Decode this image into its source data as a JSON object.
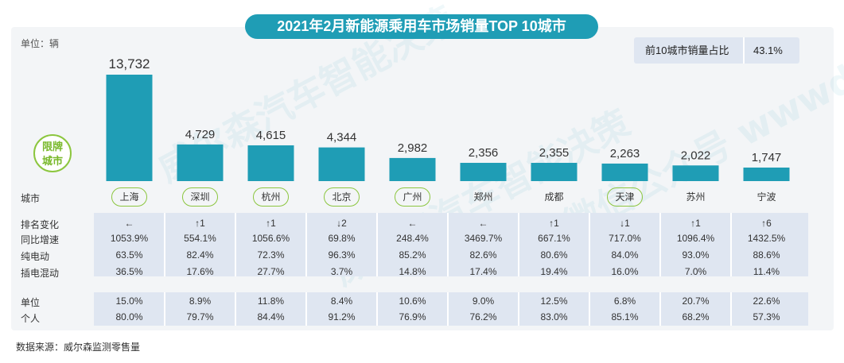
{
  "title": "2021年2月新能源乘用车市场销量TOP 10城市",
  "unit_note": "单位：辆",
  "share": {
    "label": "前10城市销量占比",
    "value": "43.1%"
  },
  "badge": [
    "限牌",
    "城市"
  ],
  "row_labels": {
    "city": "城市",
    "rank_change": "排名变化",
    "yoy": "同比增速",
    "bev": "纯电动",
    "phev": "插电混动",
    "org": "单位",
    "personal": "个人"
  },
  "source": "数据来源：威尔森监测零售量",
  "colors": {
    "bar": "#1f9db5",
    "ring": "#8cc63f",
    "band": "#dfe6f1"
  },
  "chart_data": {
    "type": "bar",
    "title": "2021年2月新能源乘用车市场销量TOP 10城市",
    "ylabel": "单位：辆",
    "categories": [
      "上海",
      "深圳",
      "杭州",
      "北京",
      "广州",
      "郑州",
      "成都",
      "天津",
      "苏州",
      "宁波"
    ],
    "values": [
      13732,
      4729,
      4615,
      4344,
      2982,
      2356,
      2355,
      2263,
      2022,
      1747
    ],
    "value_labels": [
      "13,732",
      "4,729",
      "4,615",
      "4,344",
      "2,982",
      "2,356",
      "2,355",
      "2,263",
      "2,022",
      "1,747"
    ],
    "restricted_city": [
      true,
      true,
      true,
      true,
      true,
      false,
      false,
      true,
      false,
      false
    ],
    "ylim": [
      0,
      13732
    ],
    "grid": false,
    "legend": "none"
  },
  "table": {
    "rank_change": [
      "←",
      "↑1",
      "↑1",
      "↓2",
      "←",
      "←",
      "↑1",
      "↓1",
      "↑1",
      "↑6"
    ],
    "yoy": [
      "1053.9%",
      "554.1%",
      "1056.6%",
      "69.8%",
      "248.4%",
      "3469.7%",
      "667.1%",
      "717.0%",
      "1096.4%",
      "1432.5%"
    ],
    "bev": [
      "63.5%",
      "82.4%",
      "72.3%",
      "96.3%",
      "85.2%",
      "82.6%",
      "80.6%",
      "84.0%",
      "93.0%",
      "88.6%"
    ],
    "phev": [
      "36.5%",
      "17.6%",
      "27.7%",
      "3.7%",
      "14.8%",
      "17.4%",
      "19.4%",
      "16.0%",
      "7.0%",
      "11.4%"
    ],
    "org": [
      "15.0%",
      "8.9%",
      "11.8%",
      "8.4%",
      "10.6%",
      "9.0%",
      "12.5%",
      "6.8%",
      "20.7%",
      "22.6%"
    ],
    "personal": [
      "80.0%",
      "79.7%",
      "84.4%",
      "91.2%",
      "76.9%",
      "76.2%",
      "83.0%",
      "85.1%",
      "68.2%",
      "57.3%"
    ]
  }
}
